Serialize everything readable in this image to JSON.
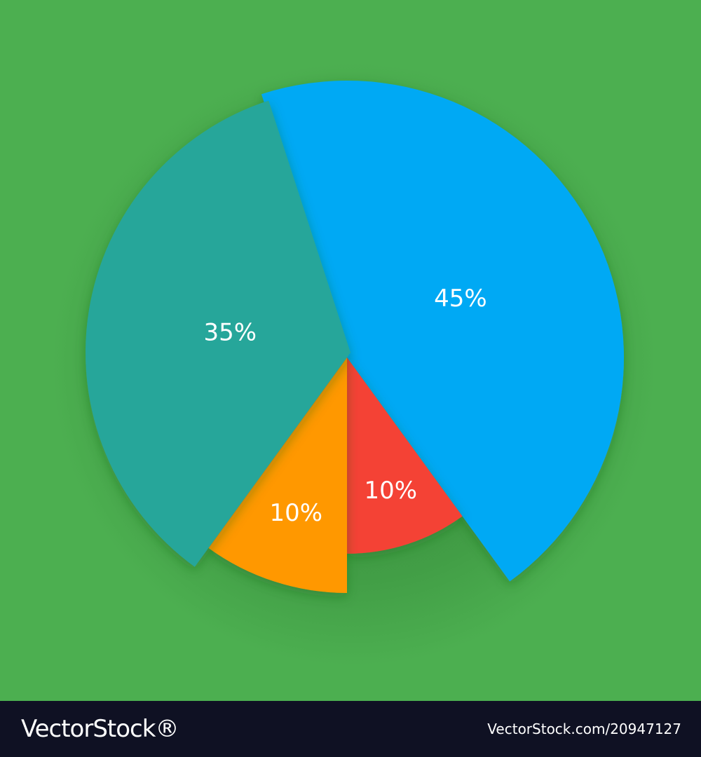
{
  "colors": {
    "background": "#4caf50",
    "shadow": "#2e7d32",
    "footer": "#0f1123",
    "text": "#ffffff"
  },
  "chart_data": {
    "type": "pie",
    "slices": [
      {
        "value": 45,
        "label": "45%",
        "color": "#03a9f4"
      },
      {
        "value": 10,
        "label": "10%",
        "color": "#f44336"
      },
      {
        "value": 10,
        "label": "10%",
        "color": "#ff9800"
      },
      {
        "value": 35,
        "label": "35%",
        "color": "#26a69a"
      }
    ],
    "legend": "none",
    "exploded": true
  },
  "footer": {
    "brand": "VectorStock®",
    "image_id": "VectorStock.com/20947127"
  }
}
